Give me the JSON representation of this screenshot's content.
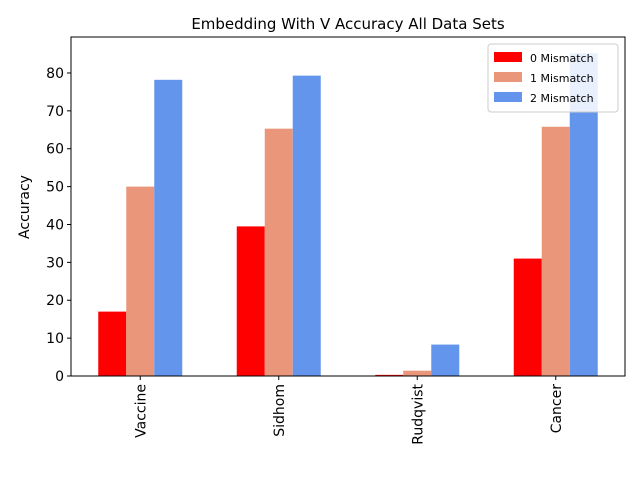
{
  "chart_data": {
    "type": "bar",
    "title": "Embedding With V  Accuracy All Data Sets",
    "xlabel": "",
    "ylabel": "Accuracy",
    "categories": [
      "Vaccine",
      "Sidhom",
      "Rudqvist",
      "Cancer"
    ],
    "series": [
      {
        "name": "0 Mismatch",
        "color": "#ff0000",
        "values": [
          17,
          39.5,
          0.3,
          31
        ]
      },
      {
        "name": "1 Mismatch",
        "color": "#e9967a",
        "values": [
          50,
          65.3,
          1.4,
          65.8
        ]
      },
      {
        "name": "2 Mismatch",
        "color": "#6495ed",
        "values": [
          78.2,
          79.3,
          8.3,
          85.2
        ]
      }
    ],
    "ylim": [
      0,
      89.5
    ],
    "yticks": [
      0,
      10,
      20,
      30,
      40,
      50,
      60,
      70,
      80
    ],
    "grid": false,
    "legend_position": "top-right"
  }
}
